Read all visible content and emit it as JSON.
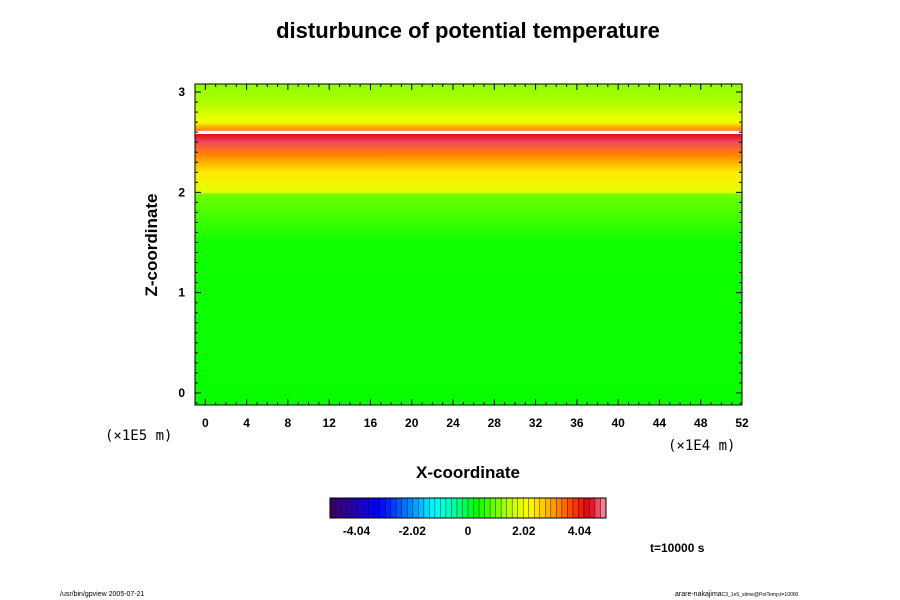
{
  "chart_data": {
    "type": "heatmap",
    "title": "disturbunce of potential temperature",
    "xlabel": "X-coordinate",
    "ylabel": "Z-coordinate",
    "x_ticks": [
      0,
      4,
      8,
      12,
      16,
      20,
      24,
      28,
      32,
      36,
      40,
      44,
      48,
      52
    ],
    "y_ticks": [
      0,
      1,
      2,
      3
    ],
    "xlim": [
      -1,
      52
    ],
    "ylim": [
      -0.12,
      3.08
    ],
    "x_scale_label": "(×1E4 m)",
    "y_scale_label": "(×1E5 m)",
    "field_profile_z": [
      {
        "z": -0.12,
        "value": 0.35
      },
      {
        "z": 1.5,
        "value": 0.4
      },
      {
        "z": 1.98,
        "value": 1.0
      },
      {
        "z": 2.0,
        "value": 1.9
      },
      {
        "z": 2.2,
        "value": 2.4
      },
      {
        "z": 2.38,
        "value": 3.3
      },
      {
        "z": 2.5,
        "value": 4.7
      },
      {
        "z": 2.58,
        "value": 4.3
      },
      {
        "z": 2.6,
        "value": 5.5
      },
      {
        "z": 2.63,
        "value": 3.2
      },
      {
        "z": 2.7,
        "value": 2.1
      },
      {
        "z": 2.9,
        "value": 1.4
      },
      {
        "z": 3.08,
        "value": 1.2
      }
    ],
    "colorbar": {
      "range": [
        -5.0,
        5.0
      ],
      "ticks": [
        -4.04,
        -2.02,
        0,
        2.02,
        4.04
      ],
      "tick_labels": [
        "-4.04",
        "-2.02",
        "0",
        "2.02",
        "4.04"
      ],
      "levels": 50,
      "colormap": "rainbow"
    },
    "grid": false
  },
  "annotations": {
    "time": "t=10000 s",
    "footer_left": "/usr/bin/gpview 2005-07-21",
    "footer_right_main": "arare-nakajima",
    "footer_right_sub": "C3_1e5_stime@PotTemp;t=10000"
  }
}
